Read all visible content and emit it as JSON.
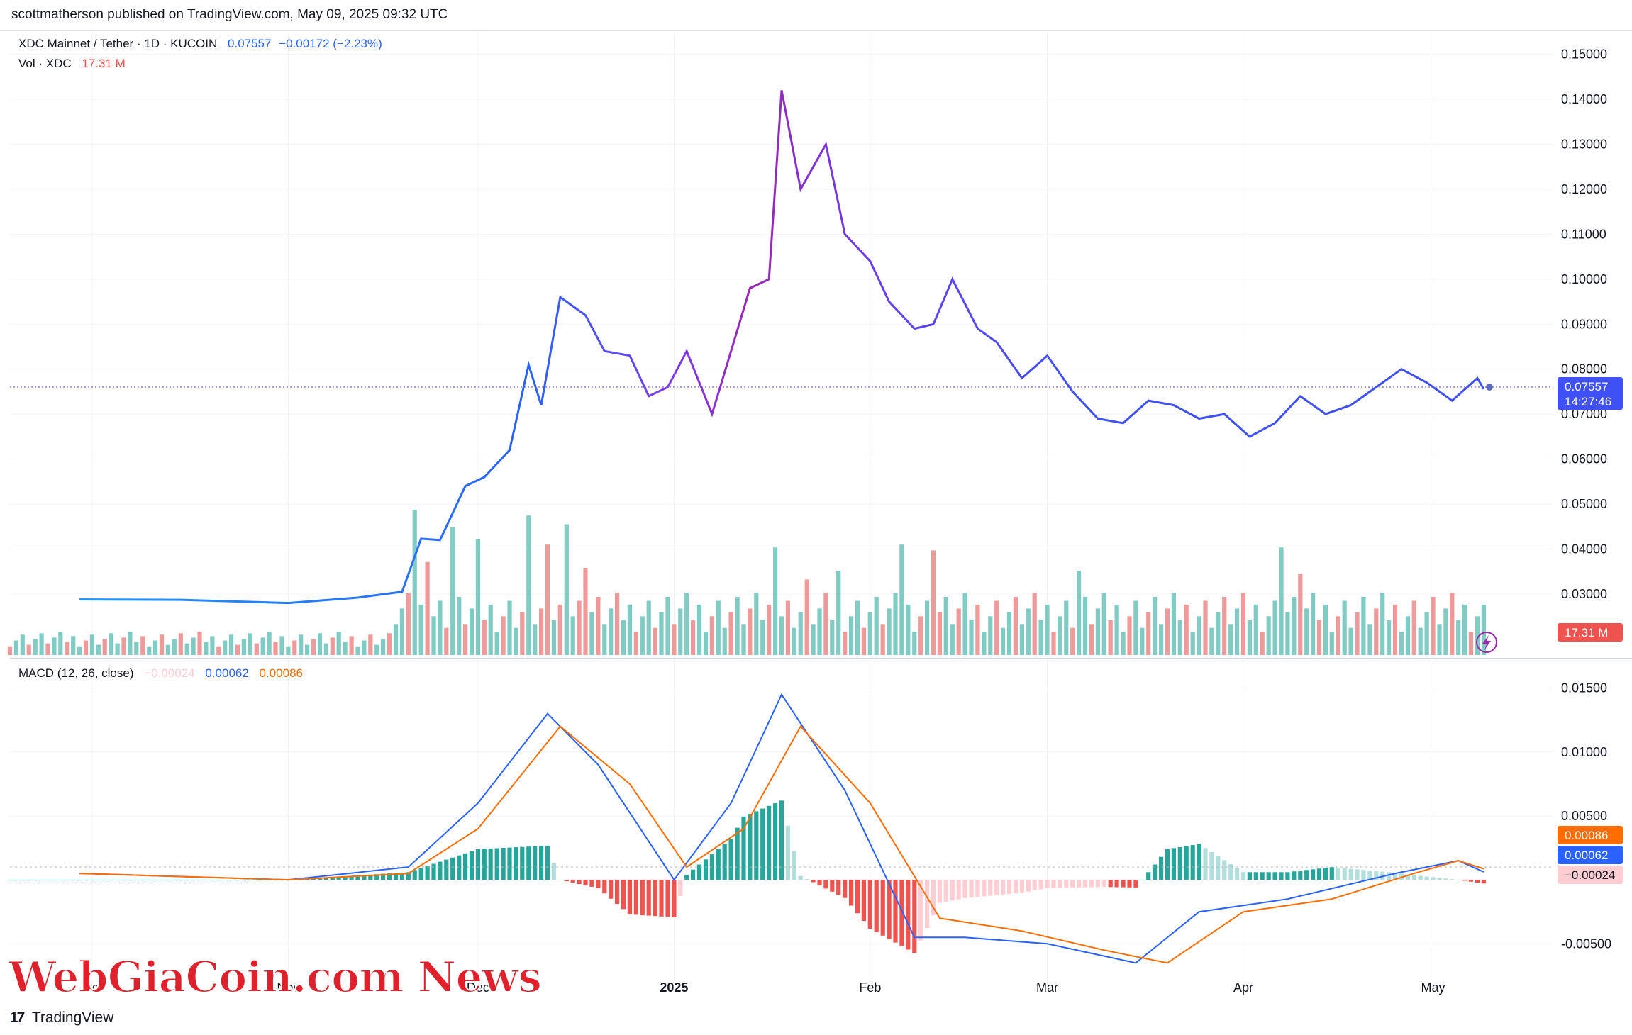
{
  "header": {
    "published": "scottmatherson published on TradingView.com, May 09, 2025 09:32 UTC"
  },
  "legend": {
    "symbol": "XDC Mainnet / Tether · 1D · KUCOIN",
    "price": "0.07557",
    "change": "−0.00172 (−2.23%)",
    "vol_label": "Vol · XDC",
    "vol_value": "17.31 M",
    "macd_label": "MACD (12, 26, close)",
    "macd_hist": "−0.00024",
    "macd_line": "0.00062",
    "macd_signal": "0.00086"
  },
  "tags": {
    "price": "0.07557",
    "countdown": "14:27:46",
    "volume": "17.31 M",
    "signal": "0.00086",
    "macd": "0.00062",
    "hist": "−0.00024"
  },
  "footer": {
    "brand": "TradingView",
    "logo": "tv-logo-icon"
  },
  "watermark": "WebGiaCoin.com News",
  "colors": {
    "price_up": "#2962ff",
    "price_peak": "#9c27b0",
    "vol_up": "#80cbc4",
    "vol_down": "#ef9a9a",
    "macd": "#2962ff",
    "signal": "#ff6d00",
    "hist_up": "#26a69a",
    "hist_down": "#ef5350"
  },
  "chart_data": [
    {
      "type": "line",
      "title": "XDC Mainnet / Tether · 1D · KUCOIN",
      "y_ticks": [
        "0.15000",
        "0.14000",
        "0.13000",
        "0.12000",
        "0.11000",
        "0.10000",
        "0.09000",
        "0.08000",
        "0.07000",
        "0.06000",
        "0.05000",
        "0.04000",
        "0.03000"
      ],
      "ylim": [
        0.018,
        0.152
      ],
      "x_ticks": [
        "Oct",
        "Nov",
        "Dec",
        "2025",
        "Feb",
        "Mar",
        "Apr",
        "May"
      ],
      "series": [
        {
          "x": [
            "2024-09-29",
            "2024-10-15",
            "2024-11-01",
            "2024-11-12",
            "2024-11-19",
            "2024-11-22",
            "2024-11-25",
            "2024-11-29",
            "2024-12-02",
            "2024-12-06",
            "2024-12-09",
            "2024-12-11",
            "2024-12-14",
            "2024-12-18",
            "2024-12-21",
            "2024-12-25",
            "2024-12-28",
            "2024-12-31",
            "2025-01-03",
            "2025-01-07",
            "2025-01-10",
            "2025-01-13",
            "2025-01-16",
            "2025-01-18",
            "2025-01-21",
            "2025-01-25",
            "2025-01-28",
            "2025-02-01",
            "2025-02-04",
            "2025-02-08",
            "2025-02-11",
            "2025-02-14",
            "2025-02-18",
            "2025-02-21",
            "2025-02-25",
            "2025-03-01",
            "2025-03-05",
            "2025-03-09",
            "2025-03-13",
            "2025-03-17",
            "2025-03-21",
            "2025-03-25",
            "2025-03-29",
            "2025-04-02",
            "2025-04-06",
            "2025-04-10",
            "2025-04-14",
            "2025-04-18",
            "2025-04-22",
            "2025-04-26",
            "2025-04-30",
            "2025-05-04",
            "2025-05-08",
            "2025-05-09"
          ],
          "values": [
            0.0288,
            0.0287,
            0.028,
            0.0292,
            0.0305,
            0.0423,
            0.042,
            0.054,
            0.056,
            0.062,
            0.081,
            0.072,
            0.096,
            0.092,
            0.084,
            0.083,
            0.074,
            0.076,
            0.084,
            0.07,
            0.084,
            0.098,
            0.1,
            0.142,
            0.12,
            0.13,
            0.11,
            0.104,
            0.095,
            0.089,
            0.09,
            0.1,
            0.089,
            0.086,
            0.078,
            0.083,
            0.075,
            0.069,
            0.068,
            0.073,
            0.072,
            0.069,
            0.07,
            0.065,
            0.068,
            0.074,
            0.07,
            0.072,
            0.076,
            0.08,
            0.077,
            0.073,
            0.078,
            0.07557
          ]
        }
      ]
    },
    {
      "type": "bar",
      "title": "Vol · XDC",
      "series": [
        {
          "name": "up",
          "x": [
            "2024-11-21",
            "2024-11-27",
            "2024-12-01",
            "2024-12-09",
            "2024-12-15",
            "2025-01-17",
            "2025-01-27",
            "2025-02-06",
            "2025-03-06",
            "2025-04-07",
            "2025-05-09"
          ],
          "values": [
            50,
            44,
            40,
            48,
            45,
            37,
            29,
            38,
            29,
            37,
            17.31
          ]
        },
        {
          "name": "down",
          "x": [
            "2024-11-23",
            "2024-12-12",
            "2024-12-18",
            "2025-01-22",
            "2025-02-11",
            "2025-04-10"
          ],
          "values": [
            32,
            38,
            30,
            26,
            36,
            28
          ]
        }
      ]
    },
    {
      "type": "line",
      "title": "MACD (12, 26, close)",
      "y_ticks": [
        "0.01500",
        "0.01000",
        "0.00500",
        "-0.00500"
      ],
      "ylim": [
        -0.0082,
        0.0162
      ],
      "series": [
        {
          "name": "MACD",
          "x": [
            "2024-09-29",
            "2024-11-01",
            "2024-11-20",
            "2024-12-01",
            "2024-12-12",
            "2024-12-20",
            "2025-01-01",
            "2025-01-10",
            "2025-01-18",
            "2025-01-28",
            "2025-02-08",
            "2025-02-16",
            "2025-03-01",
            "2025-03-15",
            "2025-03-25",
            "2025-04-08",
            "2025-04-25",
            "2025-05-05",
            "2025-05-09"
          ],
          "values": [
            0.0005,
            0.0,
            0.001,
            0.006,
            0.013,
            0.009,
            0.0,
            0.006,
            0.0145,
            0.007,
            -0.0045,
            -0.0045,
            -0.005,
            -0.0065,
            -0.0025,
            -0.0015,
            0.0005,
            0.0015,
            0.00062
          ]
        },
        {
          "name": "Signal",
          "x": [
            "2024-09-29",
            "2024-11-01",
            "2024-11-20",
            "2024-12-01",
            "2024-12-14",
            "2024-12-25",
            "2025-01-03",
            "2025-01-12",
            "2025-01-21",
            "2025-02-01",
            "2025-02-12",
            "2025-02-25",
            "2025-03-10",
            "2025-03-20",
            "2025-04-01",
            "2025-04-15",
            "2025-04-28",
            "2025-05-05",
            "2025-05-09"
          ],
          "values": [
            0.0005,
            0.0,
            0.0005,
            0.004,
            0.012,
            0.0075,
            0.001,
            0.004,
            0.012,
            0.006,
            -0.003,
            -0.004,
            -0.0055,
            -0.0065,
            -0.0025,
            -0.0015,
            0.0005,
            0.0015,
            0.00086
          ]
        }
      ]
    }
  ]
}
